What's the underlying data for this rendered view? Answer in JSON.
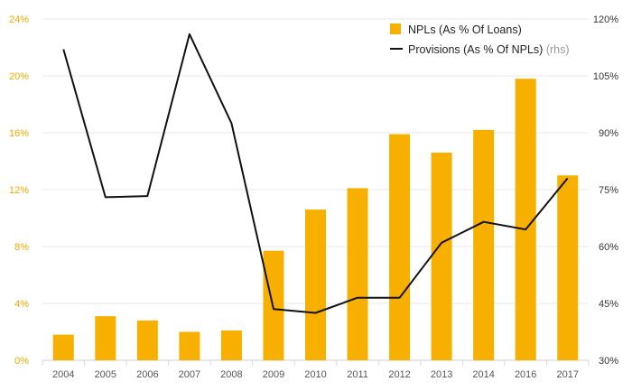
{
  "chart_data": {
    "type": "bar+line",
    "categories": [
      "2004",
      "2005",
      "2006",
      "2007",
      "2008",
      "2009",
      "2010",
      "2011",
      "2012",
      "2013",
      "2014",
      "2016",
      "2017"
    ],
    "series": [
      {
        "name": "NPLs (As % Of Loans)",
        "type": "bar",
        "axis": "left",
        "color": "#f7b000",
        "values": [
          1.8,
          3.1,
          2.8,
          2.0,
          2.1,
          7.7,
          10.6,
          12.1,
          15.9,
          14.6,
          16.2,
          19.8,
          13.0
        ]
      },
      {
        "name": "Provisions (As % Of NPLs)",
        "name_suffix": "(rhs)",
        "type": "line",
        "axis": "right",
        "color": "#111111",
        "values": [
          112,
          73,
          73.3,
          116,
          92.5,
          43.5,
          42.5,
          46.5,
          46.5,
          61,
          66.5,
          64.5,
          78
        ]
      }
    ],
    "y_left": {
      "ticks": [
        "0%",
        "4%",
        "8%",
        "12%",
        "16%",
        "20%",
        "24%"
      ],
      "range": [
        0,
        24
      ]
    },
    "y_right": {
      "ticks": [
        "30%",
        "45%",
        "60%",
        "75%",
        "90%",
        "105%",
        "120%"
      ],
      "range": [
        30,
        120
      ]
    },
    "grid": true,
    "legend_position": "top-right"
  }
}
